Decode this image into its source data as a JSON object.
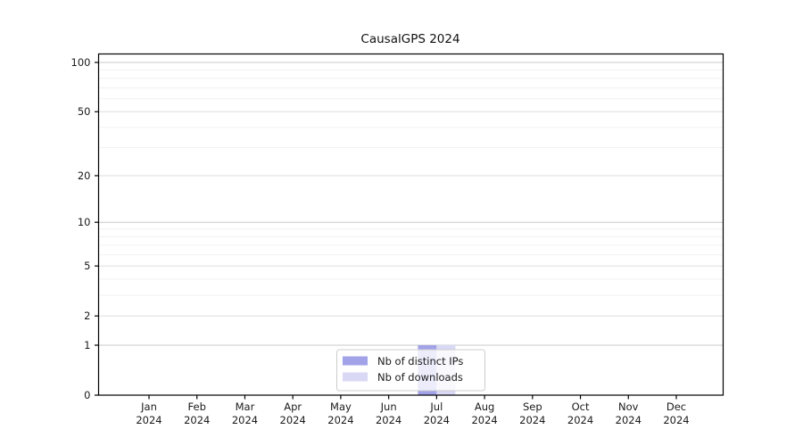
{
  "chart_data": {
    "type": "bar",
    "title": "CausalGPS 2024",
    "x": {
      "months": [
        "Jan",
        "Feb",
        "Mar",
        "Apr",
        "May",
        "Jun",
        "Jul",
        "Aug",
        "Sep",
        "Oct",
        "Nov",
        "Dec"
      ],
      "year": "2024"
    },
    "series": [
      {
        "name": "Nb of distinct IPs",
        "color": "#a2a2e8",
        "values": [
          0,
          0,
          0,
          0,
          0,
          0,
          1,
          0,
          0,
          0,
          0,
          0
        ]
      },
      {
        "name": "Nb of downloads",
        "color": "#d9d9f6",
        "values": [
          0,
          0,
          0,
          0,
          0,
          0,
          1,
          0,
          0,
          0,
          0,
          0
        ]
      }
    ],
    "y_axis": {
      "scale": "log1p",
      "tick_labels": [
        0,
        1,
        2,
        5,
        10,
        20,
        50,
        100
      ],
      "minor_ticks": [
        3,
        4,
        6,
        7,
        8,
        9,
        30,
        40,
        60,
        70,
        80,
        90
      ],
      "decade_ticks": [
        1,
        10,
        100
      ],
      "range": [
        0,
        112
      ]
    },
    "legend": {
      "position": "lower center",
      "entries": [
        "Nb of distinct IPs",
        "Nb of downloads"
      ]
    },
    "grid": true
  },
  "colors": {
    "background": "#ffffff",
    "spine": "#000000",
    "grid_decade": "#c8c8c8",
    "grid_labeled": "#dedede",
    "grid_minor": "#f1f1f1",
    "tick_text": "#1a1a1a",
    "legend_border": "#cccccc",
    "legend_bg_opacity": "0.8"
  }
}
